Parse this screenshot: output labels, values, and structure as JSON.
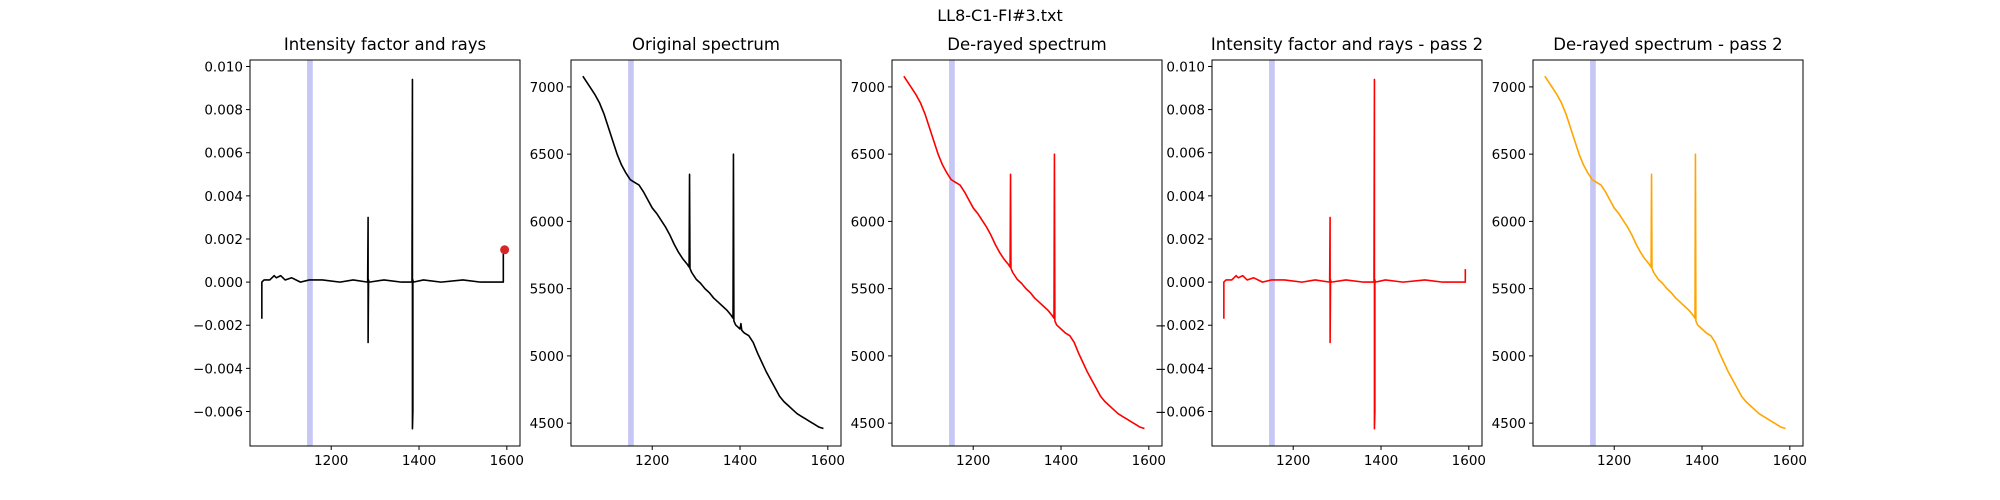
{
  "figure_title": "LL8-C1-FI#3.txt",
  "colors": {
    "black": "#000000",
    "red": "#ff0000",
    "orange": "#ffa500",
    "band": "#9999ee"
  },
  "chart_data": [
    {
      "type": "line",
      "title": "Intensity factor and rays",
      "color": "#000000",
      "xlim": [
        1015,
        1630
      ],
      "ylim": [
        -0.0076,
        0.0103
      ],
      "xticks": [
        1200,
        1400,
        1600
      ],
      "yticks": [
        -0.006,
        -0.004,
        -0.002,
        0.0,
        0.002,
        0.004,
        0.006,
        0.008,
        0.01
      ],
      "ytick_labels": [
        "−0.006",
        "−0.004",
        "−0.002",
        "0.000",
        "0.002",
        "0.004",
        "0.006",
        "0.008",
        "0.010"
      ],
      "band": [
        1145,
        1158
      ],
      "marker": {
        "x": 1595,
        "y": 0.0015,
        "color": "#d62728"
      },
      "series": [
        {
          "x": [
            1042,
            1042,
            1047,
            1060,
            1070,
            1075,
            1085,
            1095,
            1110,
            1130,
            1150,
            1180,
            1220,
            1250,
            1283,
            1284,
            1284,
            1285,
            1286,
            1287,
            1320,
            1360,
            1384,
            1385,
            1385,
            1386,
            1386,
            1387,
            1410,
            1450,
            1500,
            1540,
            1580,
            1592,
            1592
          ],
          "y": [
            -0.0017,
            0.0,
            0.0001,
            0.0001,
            0.0003,
            0.0002,
            0.0003,
            0.0001,
            0.0002,
            0.0,
            0.0001,
            0.0001,
            0.0,
            0.0001,
            0.0,
            0.003,
            -0.0028,
            0.0001,
            0.0,
            0.0,
            0.0001,
            0.0,
            0.0,
            0.0094,
            -0.0068,
            -0.006,
            0.0001,
            0.0,
            0.0001,
            0.0,
            0.0001,
            0.0,
            0.0,
            0.0,
            0.0015
          ]
        }
      ]
    },
    {
      "type": "line",
      "title": "Original spectrum",
      "color": "#000000",
      "xlim": [
        1015,
        1630
      ],
      "ylim": [
        4330,
        7200
      ],
      "xticks": [
        1200,
        1400,
        1600
      ],
      "yticks": [
        4500,
        5000,
        5500,
        6000,
        6500,
        7000
      ],
      "band": [
        1145,
        1158
      ],
      "series": [
        {
          "x": [
            1042,
            1050,
            1060,
            1070,
            1080,
            1090,
            1100,
            1110,
            1120,
            1130,
            1140,
            1150,
            1160,
            1170,
            1180,
            1190,
            1200,
            1210,
            1220,
            1230,
            1240,
            1250,
            1260,
            1270,
            1280,
            1284,
            1285,
            1286,
            1290,
            1300,
            1310,
            1320,
            1330,
            1340,
            1350,
            1360,
            1370,
            1380,
            1384,
            1385,
            1386,
            1390,
            1400,
            1402,
            1404,
            1410,
            1420,
            1430,
            1440,
            1450,
            1460,
            1470,
            1480,
            1490,
            1500,
            1510,
            1520,
            1530,
            1540,
            1550,
            1560,
            1570,
            1580,
            1590
          ],
          "y": [
            7080,
            7040,
            6990,
            6940,
            6880,
            6800,
            6700,
            6600,
            6500,
            6420,
            6360,
            6310,
            6290,
            6270,
            6220,
            6160,
            6100,
            6060,
            6010,
            5960,
            5900,
            5830,
            5770,
            5720,
            5680,
            5660,
            6350,
            5650,
            5620,
            5570,
            5540,
            5500,
            5470,
            5430,
            5400,
            5370,
            5340,
            5300,
            5280,
            6500,
            5260,
            5230,
            5200,
            5240,
            5190,
            5170,
            5150,
            5100,
            5020,
            4950,
            4880,
            4820,
            4760,
            4700,
            4660,
            4630,
            4600,
            4570,
            4550,
            4530,
            4510,
            4490,
            4470,
            4460
          ]
        }
      ]
    },
    {
      "type": "line",
      "title": "De-rayed spectrum",
      "color": "#ff0000",
      "xlim": [
        1015,
        1630
      ],
      "ylim": [
        4330,
        7200
      ],
      "xticks": [
        1200,
        1400,
        1600
      ],
      "yticks": [
        4500,
        5000,
        5500,
        6000,
        6500,
        7000
      ],
      "band": [
        1145,
        1158
      ],
      "series": [
        {
          "x": [
            1042,
            1050,
            1060,
            1070,
            1080,
            1090,
            1100,
            1110,
            1120,
            1130,
            1140,
            1150,
            1160,
            1170,
            1180,
            1190,
            1200,
            1210,
            1220,
            1230,
            1240,
            1250,
            1260,
            1270,
            1280,
            1284,
            1285,
            1286,
            1290,
            1300,
            1310,
            1320,
            1330,
            1340,
            1350,
            1360,
            1370,
            1380,
            1384,
            1385,
            1386,
            1390,
            1400,
            1410,
            1420,
            1430,
            1440,
            1450,
            1460,
            1470,
            1480,
            1490,
            1500,
            1510,
            1520,
            1530,
            1540,
            1550,
            1560,
            1570,
            1580,
            1590
          ],
          "y": [
            7080,
            7040,
            6990,
            6940,
            6880,
            6800,
            6700,
            6600,
            6500,
            6420,
            6360,
            6310,
            6290,
            6270,
            6220,
            6160,
            6100,
            6060,
            6010,
            5960,
            5900,
            5830,
            5770,
            5720,
            5680,
            5660,
            6350,
            5650,
            5620,
            5570,
            5540,
            5500,
            5470,
            5430,
            5400,
            5370,
            5340,
            5300,
            5280,
            6500,
            5260,
            5230,
            5200,
            5170,
            5150,
            5100,
            5020,
            4950,
            4880,
            4820,
            4760,
            4700,
            4660,
            4630,
            4600,
            4570,
            4550,
            4530,
            4510,
            4490,
            4470,
            4460
          ]
        }
      ]
    },
    {
      "type": "line",
      "title": "Intensity factor and rays - pass 2",
      "color": "#ff0000",
      "xlim": [
        1015,
        1630
      ],
      "ylim": [
        -0.0076,
        0.0103
      ],
      "xticks": [
        1200,
        1400,
        1600
      ],
      "yticks": [
        -0.006,
        -0.004,
        -0.002,
        0.0,
        0.002,
        0.004,
        0.006,
        0.008,
        0.01
      ],
      "ytick_labels": [
        "−0.006",
        "−0.004",
        "−0.002",
        "0.000",
        "0.002",
        "0.004",
        "0.006",
        "0.008",
        "0.010"
      ],
      "band": [
        1145,
        1158
      ],
      "series": [
        {
          "x": [
            1042,
            1042,
            1047,
            1060,
            1070,
            1075,
            1085,
            1095,
            1110,
            1130,
            1150,
            1180,
            1220,
            1250,
            1283,
            1284,
            1284,
            1285,
            1286,
            1287,
            1320,
            1360,
            1384,
            1385,
            1385,
            1386,
            1386,
            1387,
            1410,
            1450,
            1500,
            1540,
            1580,
            1592,
            1592
          ],
          "y": [
            -0.0017,
            0.0,
            0.0001,
            0.0001,
            0.0003,
            0.0002,
            0.0003,
            0.0001,
            0.0002,
            0.0,
            0.0001,
            0.0001,
            0.0,
            0.0001,
            0.0,
            0.003,
            -0.0028,
            0.0001,
            0.0,
            0.0,
            0.0001,
            0.0,
            0.0,
            0.0094,
            -0.0068,
            -0.006,
            0.0001,
            0.0,
            0.0001,
            0.0,
            0.0001,
            0.0,
            0.0,
            0.0,
            0.0006
          ]
        }
      ]
    },
    {
      "type": "line",
      "title": "De-rayed spectrum - pass 2",
      "color": "#ffa500",
      "xlim": [
        1015,
        1630
      ],
      "ylim": [
        4330,
        7200
      ],
      "xticks": [
        1200,
        1400,
        1600
      ],
      "yticks": [
        4500,
        5000,
        5500,
        6000,
        6500,
        7000
      ],
      "band": [
        1145,
        1158
      ],
      "series": [
        {
          "x": [
            1042,
            1050,
            1060,
            1070,
            1080,
            1090,
            1100,
            1110,
            1120,
            1130,
            1140,
            1150,
            1160,
            1170,
            1180,
            1190,
            1200,
            1210,
            1220,
            1230,
            1240,
            1250,
            1260,
            1270,
            1280,
            1284,
            1285,
            1286,
            1290,
            1300,
            1310,
            1320,
            1330,
            1340,
            1350,
            1360,
            1370,
            1380,
            1384,
            1385,
            1386,
            1390,
            1400,
            1410,
            1420,
            1430,
            1440,
            1450,
            1460,
            1470,
            1480,
            1490,
            1500,
            1510,
            1520,
            1530,
            1540,
            1550,
            1560,
            1570,
            1580,
            1590
          ],
          "y": [
            7080,
            7040,
            6990,
            6940,
            6880,
            6800,
            6700,
            6600,
            6500,
            6420,
            6360,
            6310,
            6290,
            6270,
            6220,
            6160,
            6100,
            6060,
            6010,
            5960,
            5900,
            5830,
            5770,
            5720,
            5680,
            5660,
            6350,
            5650,
            5620,
            5570,
            5540,
            5500,
            5470,
            5430,
            5400,
            5370,
            5340,
            5300,
            5280,
            6500,
            5260,
            5230,
            5200,
            5170,
            5150,
            5100,
            5020,
            4950,
            4880,
            4820,
            4760,
            4700,
            4660,
            4630,
            4600,
            4570,
            4550,
            4530,
            4510,
            4490,
            4470,
            4460
          ]
        }
      ]
    }
  ]
}
